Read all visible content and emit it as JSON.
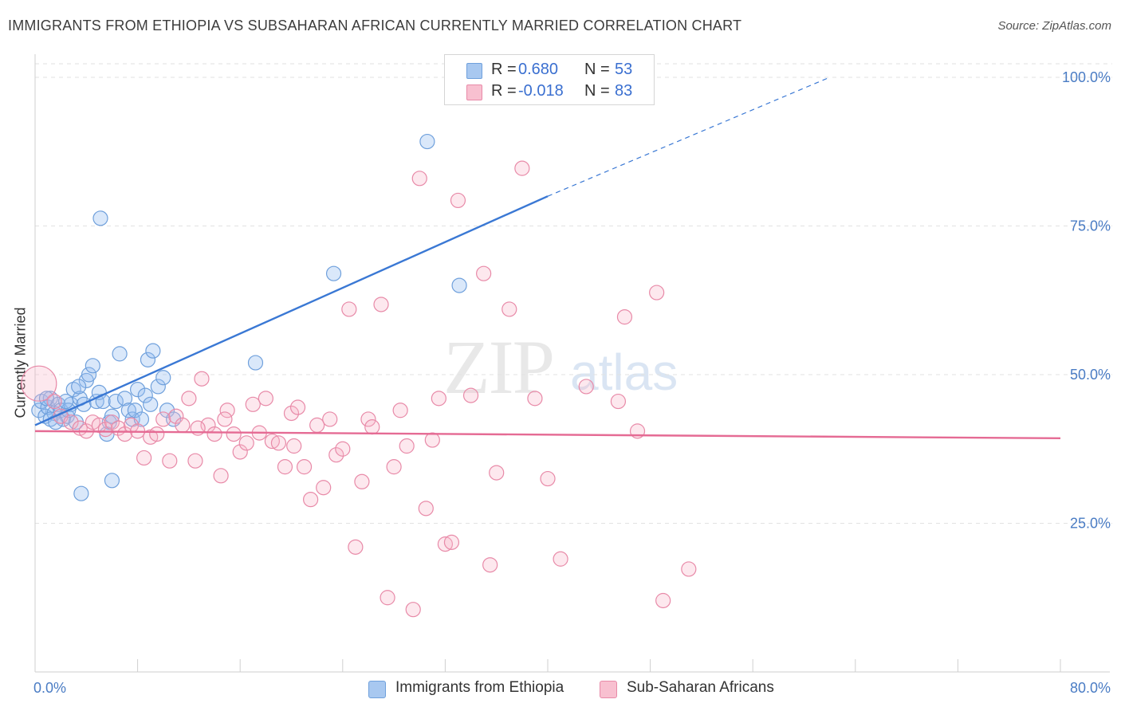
{
  "header": {
    "title": "IMMIGRANTS FROM ETHIOPIA VS SUBSAHARAN AFRICAN CURRENTLY MARRIED CORRELATION CHART",
    "source": "Source: ZipAtlas.com"
  },
  "watermark": {
    "zip": "ZIP",
    "atlas": "atlas"
  },
  "legend": {
    "rows": [
      {
        "r_label": "R =",
        "r_value": "0.680",
        "n_label": "N =",
        "n_value": "53",
        "color": "#a8c8f0",
        "border": "#6fa0dc"
      },
      {
        "r_label": "R =",
        "r_value": "-0.018",
        "n_label": "N =",
        "n_value": "83",
        "color": "#f8c0d0",
        "border": "#e88aa8"
      }
    ]
  },
  "bottom_legend": {
    "items": [
      {
        "label": "Immigrants from Ethiopia",
        "color": "#a8c8f0",
        "border": "#6fa0dc"
      },
      {
        "label": "Sub-Saharan Africans",
        "color": "#f8c0d0",
        "border": "#e88aa8"
      }
    ]
  },
  "chart_data": {
    "type": "scatter",
    "ylabel": "Currently Married",
    "xlabel": "",
    "xlim": [
      0,
      80
    ],
    "ylim": [
      0,
      100
    ],
    "x_tick_labels": [
      "0.0%",
      "80.0%"
    ],
    "y_ticks": [
      25,
      50,
      75,
      100
    ],
    "y_tick_labels": [
      "25.0%",
      "50.0%",
      "75.0%",
      "100.0%"
    ],
    "grid": true,
    "colors": {
      "blue": "#3a78d4",
      "pink": "#e56b94"
    },
    "series": [
      {
        "name": "Immigrants from Ethiopia",
        "color": "#6fa0dc",
        "fill": "rgba(150,190,240,0.35)",
        "trend": {
          "x0": 0,
          "y0": 41.5,
          "x1": 40,
          "y1": 80,
          "x_dash_end": 62,
          "y_dash_end": 100
        },
        "points": [
          [
            0.3,
            44
          ],
          [
            0.5,
            45.5
          ],
          [
            0.8,
            43
          ],
          [
            1.0,
            44.5
          ],
          [
            1.2,
            46
          ],
          [
            1.5,
            43.5
          ],
          [
            1.8,
            45
          ],
          [
            2.0,
            44
          ],
          [
            2.2,
            42.5
          ],
          [
            2.5,
            43
          ],
          [
            2.8,
            45
          ],
          [
            3.0,
            47.5
          ],
          [
            3.2,
            42
          ],
          [
            3.5,
            46
          ],
          [
            3.8,
            45
          ],
          [
            4.0,
            49
          ],
          [
            4.2,
            50
          ],
          [
            4.5,
            51.5
          ],
          [
            4.8,
            45.5
          ],
          [
            5.0,
            47
          ],
          [
            5.3,
            45.5
          ],
          [
            5.6,
            40
          ],
          [
            5.8,
            42
          ],
          [
            6.0,
            43
          ],
          [
            6.3,
            45.5
          ],
          [
            6.6,
            53.5
          ],
          [
            7.0,
            46
          ],
          [
            7.3,
            44
          ],
          [
            7.6,
            42.5
          ],
          [
            7.8,
            44
          ],
          [
            8.0,
            47.5
          ],
          [
            8.3,
            42.5
          ],
          [
            8.6,
            46.5
          ],
          [
            8.8,
            52.5
          ],
          [
            9.0,
            45
          ],
          [
            9.2,
            54
          ],
          [
            9.6,
            48
          ],
          [
            10.0,
            49.5
          ],
          [
            10.3,
            44
          ],
          [
            10.8,
            42.5
          ],
          [
            5.1,
            76.3
          ],
          [
            6.0,
            32.2
          ],
          [
            3.6,
            30
          ],
          [
            17.2,
            52
          ],
          [
            23.3,
            67
          ],
          [
            30.6,
            89.2
          ],
          [
            33.1,
            65
          ],
          [
            1.2,
            42.5
          ],
          [
            2.6,
            44
          ],
          [
            0.9,
            46
          ],
          [
            1.6,
            42
          ],
          [
            3.4,
            48
          ],
          [
            2.4,
            45.5
          ]
        ]
      },
      {
        "name": "Sub-Saharan Africans",
        "color": "#e88aa8",
        "fill": "rgba(248,180,200,0.30)",
        "trend": {
          "x0": 0,
          "y0": 40.5,
          "x1": 80,
          "y1": 39.3
        },
        "points": [
          [
            0.3,
            48.5
          ],
          [
            1.5,
            45.5
          ],
          [
            2.0,
            43
          ],
          [
            2.8,
            42
          ],
          [
            3.5,
            41
          ],
          [
            4.0,
            40.5
          ],
          [
            4.5,
            42
          ],
          [
            5.0,
            41.5
          ],
          [
            5.5,
            40.8
          ],
          [
            6.0,
            42
          ],
          [
            6.5,
            41
          ],
          [
            7.0,
            40
          ],
          [
            7.5,
            41.5
          ],
          [
            8.0,
            40.5
          ],
          [
            8.5,
            36
          ],
          [
            9.0,
            39.5
          ],
          [
            9.5,
            40
          ],
          [
            10.0,
            42.5
          ],
          [
            10.5,
            35.5
          ],
          [
            11.0,
            43
          ],
          [
            11.5,
            41.5
          ],
          [
            12.0,
            46
          ],
          [
            12.5,
            35.5
          ],
          [
            13.0,
            49.3
          ],
          [
            13.5,
            41.5
          ],
          [
            14.0,
            40
          ],
          [
            14.5,
            33
          ],
          [
            15.0,
            44
          ],
          [
            15.5,
            40
          ],
          [
            16.0,
            37
          ],
          [
            16.5,
            38.5
          ],
          [
            17.0,
            45
          ],
          [
            17.5,
            40.2
          ],
          [
            18.0,
            46
          ],
          [
            18.5,
            38.8
          ],
          [
            19.0,
            38.5
          ],
          [
            19.5,
            34.5
          ],
          [
            20.0,
            43.5
          ],
          [
            20.5,
            44.5
          ],
          [
            21.0,
            34.5
          ],
          [
            21.5,
            29
          ],
          [
            22.0,
            41.5
          ],
          [
            22.5,
            31
          ],
          [
            23.0,
            42.5
          ],
          [
            23.5,
            36.5
          ],
          [
            24.0,
            37.5
          ],
          [
            24.5,
            61
          ],
          [
            25.0,
            21
          ],
          [
            25.5,
            32
          ],
          [
            26.0,
            42.5
          ],
          [
            27.0,
            61.8
          ],
          [
            27.5,
            12.5
          ],
          [
            28.0,
            34.5
          ],
          [
            28.5,
            44
          ],
          [
            29.0,
            38
          ],
          [
            29.5,
            10.5
          ],
          [
            30.0,
            83
          ],
          [
            30.5,
            27.5
          ],
          [
            31.0,
            39
          ],
          [
            31.5,
            46
          ],
          [
            32.0,
            21.5
          ],
          [
            32.5,
            21.8
          ],
          [
            33.0,
            79.3
          ],
          [
            34.0,
            46.5
          ],
          [
            35.0,
            67
          ],
          [
            35.5,
            18
          ],
          [
            36.0,
            33.5
          ],
          [
            37.0,
            61
          ],
          [
            38.0,
            84.7
          ],
          [
            39.0,
            46
          ],
          [
            40.0,
            32.5
          ],
          [
            41.0,
            19
          ],
          [
            43.0,
            48
          ],
          [
            45.5,
            45.5
          ],
          [
            46.0,
            59.7
          ],
          [
            47.0,
            40.5
          ],
          [
            48.5,
            63.8
          ],
          [
            49.0,
            12
          ],
          [
            51.0,
            17.3
          ],
          [
            14.8,
            42.5
          ],
          [
            26.3,
            41.2
          ],
          [
            12.7,
            41
          ],
          [
            20.2,
            38
          ]
        ]
      }
    ]
  }
}
